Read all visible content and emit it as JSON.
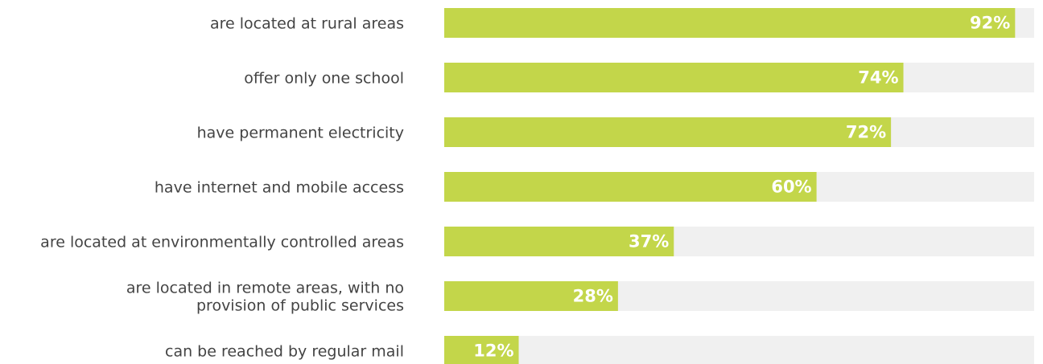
{
  "chart_data": {
    "type": "bar",
    "orientation": "horizontal",
    "categories": [
      [
        "are located at rural areas"
      ],
      [
        "offer only one school"
      ],
      [
        "have permanent electricity"
      ],
      [
        "have internet and mobile access"
      ],
      [
        "are located at environmentally controlled areas"
      ],
      [
        "are located in remote areas, with no",
        "provision of public services"
      ],
      [
        "can be reached by regular mail"
      ]
    ],
    "values": [
      92,
      74,
      72,
      60,
      37,
      28,
      12
    ],
    "value_labels": [
      "92%",
      "74%",
      "72%",
      "60%",
      "37%",
      "28%",
      "12%"
    ],
    "xlim": [
      0,
      100
    ],
    "colors": {
      "bar": "#c3d64a",
      "track": "#f0f0f0",
      "label_text": "#444444",
      "value_text": "#ffffff"
    }
  }
}
